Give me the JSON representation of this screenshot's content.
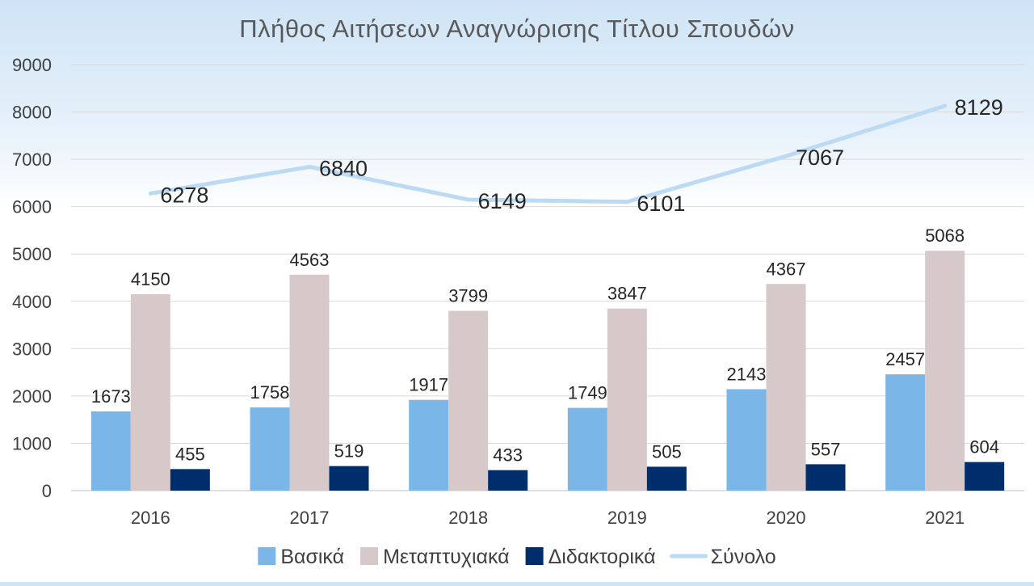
{
  "chart_data": {
    "type": "bar",
    "title": "Πλήθος Αιτήσεων Αναγνώρισης Τίτλου Σπουδών",
    "categories": [
      "2016",
      "2017",
      "2018",
      "2019",
      "2020",
      "2021"
    ],
    "ylim": [
      0,
      9000
    ],
    "yticks": [
      0,
      1000,
      2000,
      3000,
      4000,
      5000,
      6000,
      7000,
      8000,
      9000
    ],
    "grid": true,
    "legend_position": "bottom",
    "series": [
      {
        "name": "Βασικά",
        "kind": "bar",
        "color": "#7ab6e8",
        "values": [
          1673,
          1758,
          1917,
          1749,
          2143,
          2457
        ]
      },
      {
        "name": "Μεταπτυχιακά",
        "kind": "bar",
        "color": "#d7c9c9",
        "values": [
          4150,
          4563,
          3799,
          3847,
          4367,
          5068
        ]
      },
      {
        "name": "Διδακτορικά",
        "kind": "bar",
        "color": "#002d6b",
        "values": [
          455,
          519,
          433,
          505,
          557,
          604
        ]
      },
      {
        "name": "Σύνολο",
        "kind": "line",
        "color": "#bcdaf3",
        "values": [
          6278,
          6840,
          6149,
          6101,
          7067,
          8129
        ]
      }
    ]
  }
}
